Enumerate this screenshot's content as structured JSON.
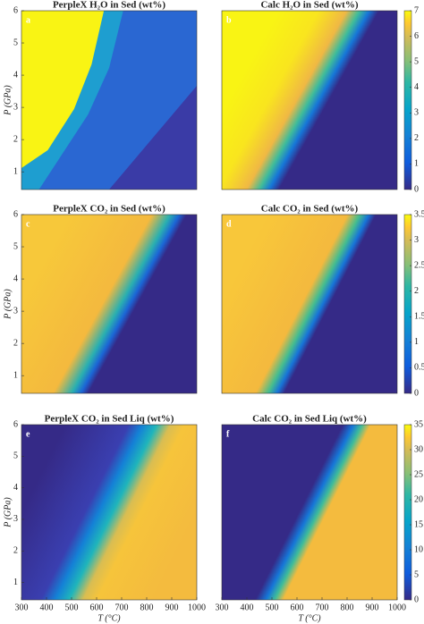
{
  "chart_data": [
    {
      "type": "heatmap",
      "title": "PerpleX H₂O in Sed (wt%)",
      "panel_label": "a",
      "xlim": [
        300,
        1000
      ],
      "ylim": [
        0.45,
        6
      ],
      "yticks": [
        1,
        2,
        3,
        4,
        5,
        6
      ],
      "ylabel": "P (GPa)"
    },
    {
      "type": "heatmap",
      "title": "Calc H₂O in Sed (wt%)",
      "panel_label": "b",
      "xlim": [
        300,
        1000
      ],
      "ylim": [
        0.45,
        6
      ],
      "colorbar": {
        "lim": [
          0,
          7
        ],
        "ticks": [
          0,
          1,
          2,
          3,
          4,
          5,
          6,
          7
        ]
      }
    },
    {
      "type": "heatmap",
      "title": "PerpleX CO₂ in Sed (wt%)",
      "panel_label": "c",
      "xlim": [
        300,
        1000
      ],
      "ylim": [
        0.45,
        6
      ],
      "yticks": [
        1,
        2,
        3,
        4,
        5,
        6
      ],
      "ylabel": "P (GPa)"
    },
    {
      "type": "heatmap",
      "title": "Calc CO₂ in Sed (wt%)",
      "panel_label": "d",
      "xlim": [
        300,
        1000
      ],
      "ylim": [
        0.45,
        6
      ],
      "colorbar": {
        "lim": [
          0,
          3.5
        ],
        "ticks": [
          0,
          0.5,
          1,
          1.5,
          2,
          2.5,
          3,
          3.5
        ]
      }
    },
    {
      "type": "heatmap",
      "title": "PerpleX CO₂ in Sed Liq (wt%)",
      "panel_label": "e",
      "xlim": [
        300,
        1000
      ],
      "ylim": [
        0.45,
        6
      ],
      "yticks": [
        1,
        2,
        3,
        4,
        5,
        6
      ],
      "ylabel": "P (GPa)",
      "xticks": [
        300,
        400,
        500,
        600,
        700,
        800,
        900,
        1000
      ],
      "xlabel": "T (°C)"
    },
    {
      "type": "heatmap",
      "title": "Calc CO₂ in Sed Liq (wt%)",
      "panel_label": "f",
      "xlim": [
        300,
        1000
      ],
      "ylim": [
        0.45,
        6
      ],
      "xticks": [
        300,
        400,
        500,
        600,
        700,
        800,
        900,
        1000
      ],
      "xlabel": "T (°C)",
      "colorbar": {
        "lim": [
          0,
          35
        ],
        "ticks": [
          0,
          5,
          10,
          15,
          20,
          25,
          30,
          35
        ]
      }
    }
  ]
}
